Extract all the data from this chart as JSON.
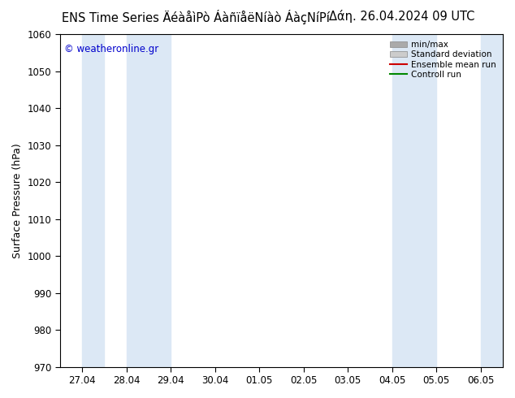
{
  "title_left": "ENS Time Series ÄéàåìPò ÁàñïåëNíàò ÁàçNíPí",
  "title_right": "Δάη. 26.04.2024 09 UTC",
  "ylabel": "Surface Pressure (hPa)",
  "ylim": [
    970,
    1060
  ],
  "yticks": [
    970,
    980,
    990,
    1000,
    1010,
    1020,
    1030,
    1040,
    1050,
    1060
  ],
  "xtick_labels": [
    "27.04",
    "28.04",
    "29.04",
    "30.04",
    "01.05",
    "02.05",
    "03.05",
    "04.05",
    "05.05",
    "06.05"
  ],
  "n_ticks": 10,
  "background_color": "#ffffff",
  "plot_bg_color": "#ffffff",
  "band_color": "#dce8f5",
  "band_ranges": [
    [
      0.0,
      0.5
    ],
    [
      1.0,
      2.0
    ],
    [
      7.0,
      8.0
    ],
    [
      9.0,
      9.5
    ]
  ],
  "watermark": "© weatheronline.gr",
  "watermark_color": "#0000cc",
  "legend_items": [
    {
      "label": "min/max",
      "type": "patch",
      "color": "#aaaaaa"
    },
    {
      "label": "Standard deviation",
      "type": "patch",
      "color": "#cccccc"
    },
    {
      "label": "Ensemble mean run",
      "type": "line",
      "color": "#cc0000",
      "lw": 1.5
    },
    {
      "label": "Controll run",
      "type": "line",
      "color": "#008800",
      "lw": 1.5
    }
  ],
  "title_fontsize": 10.5,
  "tick_label_fontsize": 8.5,
  "ylabel_fontsize": 9,
  "legend_fontsize": 7.5
}
